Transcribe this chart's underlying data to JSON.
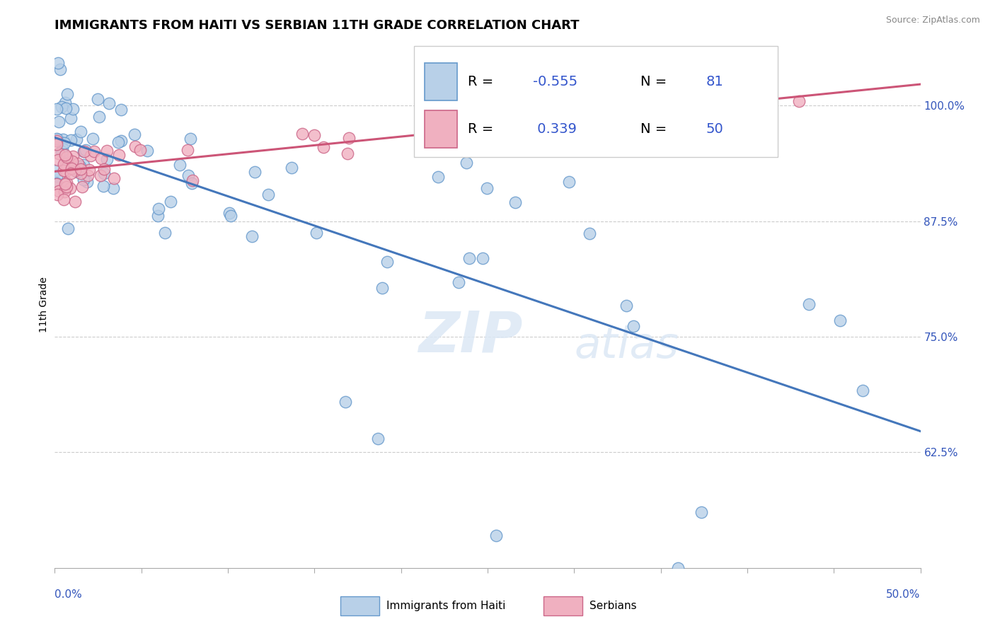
{
  "title": "IMMIGRANTS FROM HAITI VS SERBIAN 11TH GRADE CORRELATION CHART",
  "source": "Source: ZipAtlas.com",
  "ylabel": "11th Grade",
  "ylabel_ticks": [
    "62.5%",
    "75.0%",
    "87.5%",
    "100.0%"
  ],
  "ylabel_values": [
    0.625,
    0.75,
    0.875,
    1.0
  ],
  "xlim": [
    0.0,
    0.5
  ],
  "ylim": [
    0.5,
    1.07
  ],
  "legend_haiti_R": "-0.555",
  "legend_haiti_N": "81",
  "legend_serbian_R": "0.339",
  "legend_serbian_N": "50",
  "legend_label_haiti": "Immigrants from Haiti",
  "legend_label_serbian": "Serbians",
  "color_haiti_fill": "#b8d0e8",
  "color_haiti_edge": "#6699cc",
  "color_serbian_fill": "#f0b0c0",
  "color_serbian_edge": "#cc6688",
  "color_haiti_line": "#4477bb",
  "color_serbian_line": "#cc5577",
  "background_color": "#ffffff",
  "grid_color": "#cccccc",
  "watermark_top": "ZIP",
  "watermark_bot": "atlas",
  "title_fontsize": 13,
  "axis_label_fontsize": 10,
  "tick_fontsize": 11,
  "source_fontsize": 9
}
